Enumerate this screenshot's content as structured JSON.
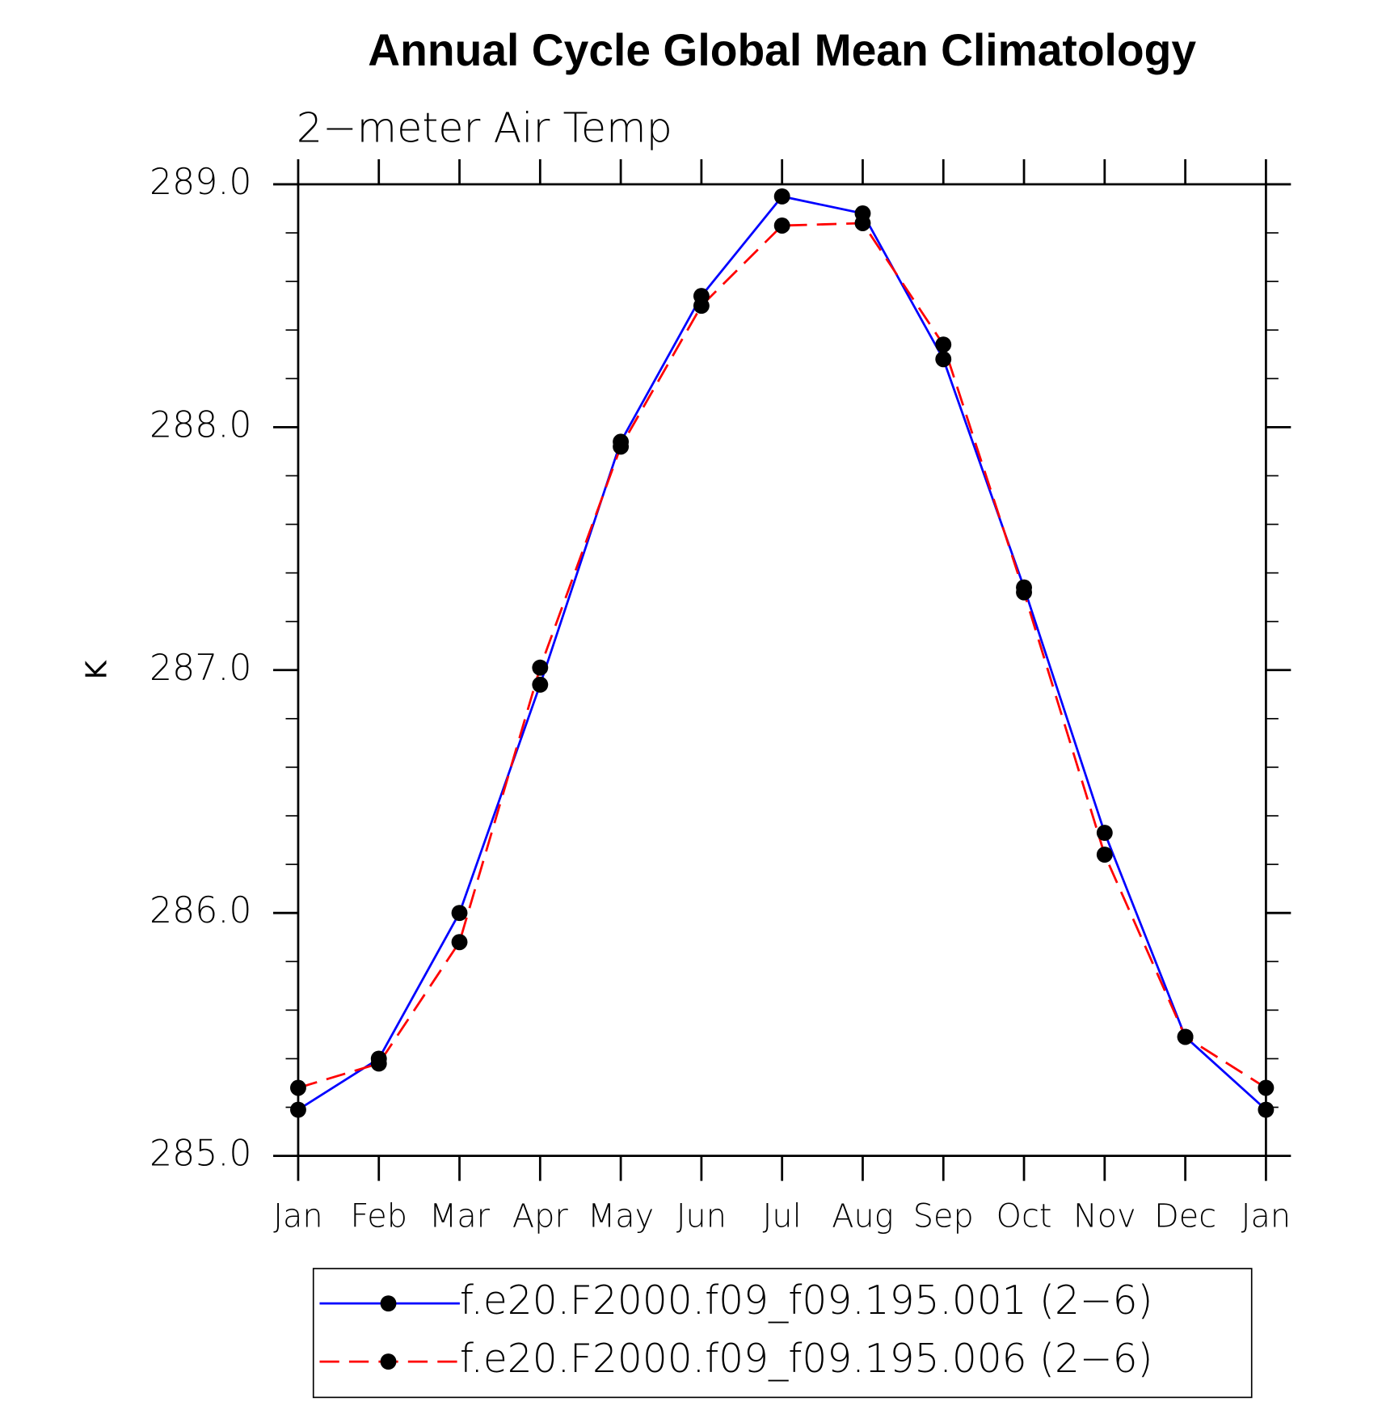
{
  "chart_data": {
    "type": "line",
    "title": "Annual Cycle Global Mean Climatology",
    "subtitle": "2−meter Air Temp",
    "y_label": "K",
    "categories": [
      "Jan",
      "Feb",
      "Mar",
      "Apr",
      "May",
      "Jun",
      "Jul",
      "Aug",
      "Sep",
      "Oct",
      "Nov",
      "Dec",
      "Jan"
    ],
    "series": [
      {
        "name": "f.e20.F2000.f09_f09.195.001 (2−6)",
        "color": "#0000ff",
        "dash": "solid",
        "marker_color": "#000000",
        "values": [
          285.19,
          285.4,
          286.0,
          286.94,
          287.94,
          288.54,
          288.95,
          288.88,
          288.28,
          287.34,
          286.33,
          285.49,
          285.19
        ]
      },
      {
        "name": "f.e20.F2000.f09_f09.195.006 (2−6)",
        "color": "#ff0000",
        "dash": "dashed",
        "marker_color": "#000000",
        "values": [
          285.28,
          285.38,
          285.88,
          287.01,
          287.92,
          288.5,
          288.83,
          288.84,
          288.34,
          287.32,
          286.24,
          285.49,
          285.28
        ]
      }
    ],
    "ylim": [
      285.0,
      289.0
    ],
    "yticks": [
      {
        "value": 285.0,
        "label": "285.0"
      },
      {
        "value": 286.0,
        "label": "286.0"
      },
      {
        "value": 287.0,
        "label": "287.0"
      },
      {
        "value": 288.0,
        "label": "288.0"
      },
      {
        "value": 289.0,
        "label": "289.0"
      }
    ],
    "yminorticks": [
      285.2,
      285.4,
      285.6,
      285.8,
      286.2,
      286.4,
      286.6,
      286.8,
      287.2,
      287.4,
      287.6,
      287.8,
      288.2,
      288.4,
      288.6,
      288.8
    ],
    "grid": false,
    "legend": "bottom"
  }
}
